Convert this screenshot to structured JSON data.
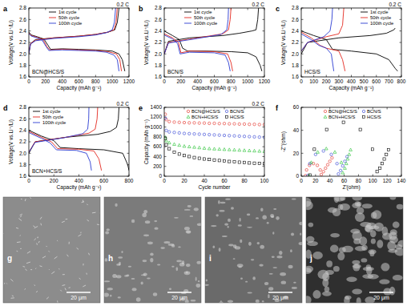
{
  "chart_data": [
    {
      "type": "line",
      "title": "a",
      "x_label": "Capacity (mAh g⁻¹)",
      "y_label": "Voltage(V vs.Li⁺/Li)",
      "annotations": [
        "0.2 C",
        "BCN@HCS/S"
      ],
      "xlim": [
        0,
        1200
      ],
      "xticks": [
        0,
        200,
        400,
        600,
        800,
        1000,
        1200
      ],
      "ylim": [
        1.6,
        2.8
      ],
      "yticks": [
        1.6,
        1.8,
        {
          "value": 2,
          "label": "2.0"
        },
        2.2,
        2.4,
        2.6,
        2.8
      ],
      "legend": "top",
      "series": [
        {
          "name": "1st cycle",
          "color": "#000000",
          "x": [
            0,
            30,
            100,
            180,
            230,
            260,
            400,
            600,
            800,
            1000,
            1080,
            1120,
            1150,
            null,
            0,
            20,
            80,
            300,
            600,
            800,
            950,
            1030,
            1060,
            1080
          ],
          "values": [
            2.38,
            2.33,
            2.3,
            2.26,
            2.15,
            2.08,
            2.09,
            2.08,
            2.07,
            2.05,
            2.0,
            1.9,
            1.7,
            null,
            2.0,
            2.18,
            2.25,
            2.28,
            2.31,
            2.34,
            2.38,
            2.42,
            2.55,
            2.8
          ]
        },
        {
          "name": "50th cycle",
          "color": "#e3281f",
          "x": [
            0,
            30,
            100,
            170,
            220,
            250,
            400,
            600,
            800,
            950,
            1050,
            1090,
            1110,
            null,
            0,
            20,
            80,
            300,
            600,
            800,
            950,
            1020,
            1045,
            1060
          ],
          "values": [
            2.36,
            2.32,
            2.29,
            2.25,
            2.12,
            2.07,
            2.08,
            2.07,
            2.06,
            2.04,
            2.0,
            1.9,
            1.7,
            null,
            2.02,
            2.18,
            2.24,
            2.28,
            2.31,
            2.34,
            2.38,
            2.42,
            2.55,
            2.8
          ]
        },
        {
          "name": "100th cycle",
          "color": "#2a3bd1",
          "x": [
            0,
            30,
            100,
            160,
            210,
            240,
            400,
            600,
            800,
            930,
            1020,
            1060,
            1080,
            null,
            0,
            20,
            80,
            300,
            600,
            800,
            930,
            1000,
            1025,
            1040
          ],
          "values": [
            2.35,
            2.31,
            2.28,
            2.24,
            2.12,
            2.06,
            2.07,
            2.06,
            2.05,
            2.03,
            1.98,
            1.9,
            1.7,
            null,
            2.02,
            2.17,
            2.23,
            2.27,
            2.3,
            2.33,
            2.37,
            2.42,
            2.55,
            2.8
          ]
        }
      ]
    },
    {
      "type": "line",
      "title": "b",
      "x_label": "Capacity (mAh g⁻¹)",
      "y_label": "Voltage(V vs.Li⁺/Li)",
      "annotations": [
        "0.2 C",
        "BCN/S"
      ],
      "xlim": [
        0,
        1200
      ],
      "xticks": [
        0,
        200,
        400,
        600,
        800,
        1000,
        1200
      ],
      "ylim": [
        1.6,
        2.8
      ],
      "yticks": [
        1.6,
        1.8,
        {
          "value": 2,
          "label": "2.0"
        },
        2.2,
        2.4,
        2.6,
        2.8
      ],
      "legend": "top",
      "series": [
        {
          "name": "1st cycle",
          "color": "#000000",
          "x": [
            0,
            100,
            180,
            220,
            280,
            500,
            800,
            1000,
            1100,
            1150,
            1170,
            null,
            0,
            50,
            300,
            700,
            900,
            1050,
            1100,
            1120,
            1130
          ],
          "values": [
            2.4,
            2.32,
            2.25,
            2.1,
            2.05,
            2.05,
            2.04,
            2.02,
            1.95,
            1.8,
            1.7,
            null,
            2.0,
            2.22,
            2.28,
            2.32,
            2.36,
            2.4,
            2.42,
            2.6,
            2.8
          ]
        },
        {
          "name": "50th cycle",
          "color": "#e3281f",
          "x": [
            0,
            100,
            170,
            200,
            300,
            600,
            760,
            800,
            820,
            null,
            0,
            50,
            400,
            700,
            770,
            790,
            800
          ],
          "values": [
            2.35,
            2.28,
            2.2,
            2.02,
            2.05,
            2.04,
            2.0,
            1.85,
            1.7,
            null,
            2.0,
            2.2,
            2.28,
            2.35,
            2.42,
            2.6,
            2.8
          ]
        },
        {
          "name": "100th cycle",
          "color": "#2a3bd1",
          "x": [
            0,
            100,
            160,
            190,
            300,
            600,
            730,
            770,
            790,
            null,
            0,
            50,
            400,
            680,
            750,
            765,
            770
          ],
          "values": [
            2.33,
            2.26,
            2.18,
            2.0,
            2.03,
            2.02,
            1.98,
            1.85,
            1.7,
            null,
            2.0,
            2.19,
            2.27,
            2.34,
            2.42,
            2.6,
            2.8
          ]
        }
      ]
    },
    {
      "type": "line",
      "title": "c",
      "x_label": "Capacity (mAh g⁻¹)",
      "y_label": "Voltage(V vs.Li⁺/Li)",
      "annotations": [
        "0.2 C",
        "HCS/S"
      ],
      "xlim": [
        0,
        800
      ],
      "xticks": [
        0,
        100,
        200,
        300,
        400,
        500,
        600,
        700,
        800
      ],
      "ylim": [
        1.6,
        2.8
      ],
      "yticks": [
        1.6,
        1.8,
        {
          "value": 2,
          "label": "2.0"
        },
        2.2,
        2.4,
        2.6,
        2.8
      ],
      "legend": "top right",
      "series": [
        {
          "name": "1st cycle",
          "color": "#000000",
          "x": [
            0,
            100,
            200,
            250,
            400,
            600,
            700,
            750,
            770,
            null,
            0,
            50,
            300,
            550,
            680,
            740,
            750
          ],
          "values": [
            2.4,
            2.32,
            2.25,
            2.08,
            2.05,
            2.0,
            1.9,
            1.75,
            1.7,
            null,
            2.0,
            2.2,
            2.28,
            2.32,
            2.36,
            2.42,
            2.45
          ]
        },
        {
          "name": "50th cycle",
          "color": "#e3281f",
          "x": [
            0,
            80,
            150,
            200,
            300,
            330,
            350,
            null,
            0,
            50,
            200,
            300,
            330,
            340
          ],
          "values": [
            2.38,
            2.28,
            2.15,
            2.1,
            2.05,
            1.9,
            1.7,
            null,
            2.05,
            2.2,
            2.3,
            2.35,
            2.5,
            2.8
          ]
        },
        {
          "name": "100th cycle",
          "color": "#2a3bd1",
          "x": [
            0,
            80,
            140,
            200,
            240,
            260,
            null,
            0,
            50,
            180,
            230,
            245,
            250
          ],
          "values": [
            2.35,
            2.25,
            2.15,
            2.1,
            2.0,
            1.7,
            null,
            2.05,
            2.2,
            2.3,
            2.4,
            2.6,
            2.8
          ]
        }
      ]
    },
    {
      "type": "line",
      "title": "d",
      "x_label": "Capacity (mAh g⁻¹)",
      "y_label": "Voltage(V vs.Li⁺/Li)",
      "annotations": [
        "0.2 C",
        "BCN+HCS/S"
      ],
      "xlim": [
        0,
        800
      ],
      "xticks": [
        0,
        200,
        400,
        600,
        800
      ],
      "ylim": [
        1.6,
        2.8
      ],
      "yticks": [
        1.6,
        1.8,
        {
          "value": 2,
          "label": "2.0"
        },
        2.2,
        2.4,
        2.6,
        2.8
      ],
      "legend": "top left",
      "series": [
        {
          "name": "1st cycle",
          "color": "#000000",
          "x": [
            0,
            100,
            200,
            250,
            400,
            600,
            750,
            790,
            800,
            null,
            0,
            50,
            300,
            550,
            650,
            700,
            715,
            720
          ],
          "values": [
            2.4,
            2.3,
            2.22,
            2.1,
            2.08,
            2.06,
            2.0,
            1.8,
            1.7,
            null,
            2.0,
            2.2,
            2.28,
            2.33,
            2.38,
            2.45,
            2.6,
            2.8
          ]
        },
        {
          "name": "50th cycle",
          "color": "#e3281f",
          "x": [
            0,
            100,
            180,
            230,
            400,
            520,
            560,
            580,
            null,
            0,
            50,
            300,
            480,
            530,
            545,
            550
          ],
          "values": [
            2.38,
            2.28,
            2.2,
            2.08,
            2.07,
            2.04,
            1.9,
            1.7,
            null,
            2.02,
            2.2,
            2.28,
            2.35,
            2.42,
            2.6,
            2.8
          ]
        },
        {
          "name": "100th cycle",
          "color": "#2a3bd1",
          "x": [
            0,
            100,
            170,
            220,
            380,
            460,
            490,
            500,
            null,
            0,
            50,
            280,
            430,
            470,
            478,
            480
          ],
          "values": [
            2.36,
            2.26,
            2.18,
            2.06,
            2.05,
            2.0,
            1.85,
            1.7,
            null,
            2.02,
            2.19,
            2.27,
            2.34,
            2.42,
            2.6,
            2.8
          ]
        }
      ]
    },
    {
      "type": "scatter",
      "title": "e",
      "x_label": "Cycle number",
      "y_label": "Capacity (mAh g⁻¹)",
      "annotations": [
        "0.2 C"
      ],
      "x": [
        1,
        2,
        5,
        10,
        15,
        20,
        25,
        30,
        35,
        40,
        45,
        50,
        55,
        60,
        65,
        70,
        75,
        80,
        85,
        90,
        95,
        100
      ],
      "xlim": [
        0,
        100
      ],
      "xticks": [
        0,
        20,
        40,
        60,
        80,
        100
      ],
      "ylim": [
        0,
        1400
      ],
      "yticks": [
        0,
        200,
        400,
        600,
        800,
        1000,
        1200,
        1400
      ],
      "legend": "top right",
      "series": [
        {
          "name": "BCN@HCS/S",
          "color": "#e3281f",
          "marker": "circle",
          "values": [
            1260,
            1150,
            1110,
            1100,
            1095,
            1090,
            1085,
            1085,
            1080,
            1080,
            1075,
            1075,
            1070,
            1070,
            1065,
            1065,
            1060,
            1060,
            1055,
            1055,
            1050,
            1050
          ]
        },
        {
          "name": "BCN/S",
          "color": "#2a3bd1",
          "marker": "circle",
          "values": [
            1180,
            930,
            900,
            890,
            880,
            870,
            865,
            860,
            855,
            850,
            845,
            840,
            835,
            830,
            825,
            820,
            815,
            810,
            805,
            800,
            795,
            790
          ]
        },
        {
          "name": "BCN+HCS/S",
          "color": "#1fbf2c",
          "marker": "triangle",
          "values": [
            790,
            720,
            680,
            650,
            630,
            610,
            600,
            590,
            580,
            570,
            560,
            555,
            550,
            545,
            540,
            535,
            530,
            525,
            520,
            515,
            510,
            505
          ]
        },
        {
          "name": "HCS/S",
          "color": "#000000",
          "marker": "square",
          "values": [
            770,
            640,
            560,
            490,
            450,
            420,
            400,
            380,
            365,
            350,
            340,
            330,
            320,
            310,
            300,
            295,
            285,
            280,
            270,
            265,
            260,
            255
          ]
        }
      ]
    },
    {
      "type": "scatter",
      "title": "f",
      "x_label": "Z'(ohm)",
      "y_label": "-Z''(ohm)",
      "xlim": [
        0,
        140
      ],
      "xticks": [
        0,
        20,
        40,
        60,
        80,
        100,
        120,
        140
      ],
      "ylim": [
        0,
        60
      ],
      "yticks": [
        0,
        20,
        40,
        60
      ],
      "legend": "top right",
      "series": [
        {
          "name": "BCN@HCS/S",
          "color": "#e3281f",
          "marker": "circle",
          "x": [
            6,
            7.5,
            11.5,
            17,
            22.5,
            26.5,
            28,
            31,
            34,
            37,
            40,
            43
          ],
          "values": [
            0.5,
            5.5,
            9.5,
            11,
            9.5,
            5.5,
            1.5,
            4,
            7,
            10,
            13,
            16
          ]
        },
        {
          "name": "BCN/S",
          "color": "#2a3bd1",
          "marker": "circle",
          "x": [
            9,
            12,
            20,
            31,
            42,
            50,
            52,
            55,
            58,
            61,
            64
          ],
          "values": [
            0.5,
            11,
            19,
            22,
            19,
            11,
            2,
            5,
            9,
            13,
            17
          ]
        },
        {
          "name": "BCN+HCS/S",
          "color": "#1fbf2c",
          "marker": "triangle",
          "x": [
            11,
            14,
            23,
            35,
            47,
            56,
            58,
            61,
            63,
            65,
            67,
            69
          ],
          "values": [
            0.5,
            12,
            21,
            24,
            21,
            12,
            3,
            7,
            11,
            15,
            19,
            23
          ]
        },
        {
          "name": "HCS/S",
          "color": "#000000",
          "marker": "square",
          "x": [
            12,
            18.3,
            35.5,
            59,
            82.5,
            99.7,
            106,
            110,
            113,
            116,
            119,
            122
          ],
          "values": [
            1,
            23.5,
            40.7,
            47,
            40.7,
            23.5,
            4,
            7,
            11,
            15,
            19,
            23
          ]
        }
      ]
    }
  ],
  "images": [
    {
      "label": "g",
      "scale_bar": "20 μm"
    },
    {
      "label": "h",
      "scale_bar": "20 μm"
    },
    {
      "label": "i",
      "scale_bar": "20 μm"
    },
    {
      "label": "j",
      "scale_bar": "20 μm"
    }
  ]
}
